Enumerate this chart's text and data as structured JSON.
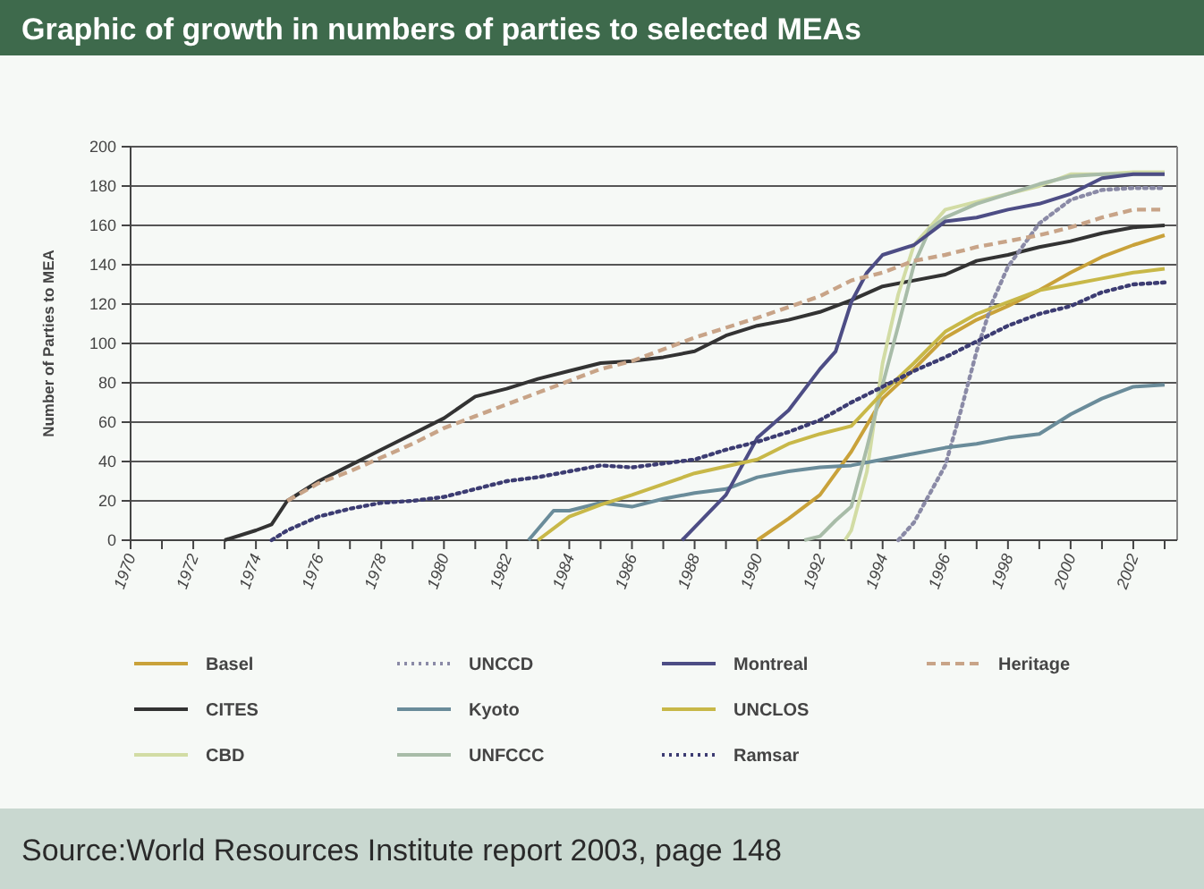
{
  "chart_data": {
    "type": "line",
    "title": "Graphic of growth in numbers of parties to selected MEAs",
    "ylabel": "Number of Parties to MEA",
    "annotations": [
      "Source:World Resources Institute report 2003, page 148"
    ],
    "xlim": [
      1970,
      2003.4
    ],
    "xticks": [
      1970,
      {
        "value": 1971,
        "label": null
      },
      1972,
      {
        "value": 1973,
        "label": null
      },
      1974,
      {
        "value": 1975,
        "label": null
      },
      1976,
      {
        "value": 1977,
        "label": null
      },
      1978,
      {
        "value": 1979,
        "label": null
      },
      1980,
      {
        "value": 1981,
        "label": null
      },
      1982,
      {
        "value": 1983,
        "label": null
      },
      1984,
      {
        "value": 1985,
        "label": null
      },
      1986,
      {
        "value": 1987,
        "label": null
      },
      1988,
      {
        "value": 1989,
        "label": null
      },
      1990,
      {
        "value": 1991,
        "label": null
      },
      1992,
      {
        "value": 1993,
        "label": null
      },
      1994,
      {
        "value": 1995,
        "label": null
      },
      1996,
      {
        "value": 1997,
        "label": null
      },
      1998,
      {
        "value": 1999,
        "label": null
      },
      2000,
      {
        "value": 2001,
        "label": null
      },
      2002,
      {
        "value": 2003,
        "label": null
      }
    ],
    "ylim": [
      0,
      200
    ],
    "yticks": [
      0,
      20,
      40,
      60,
      80,
      100,
      120,
      140,
      160,
      180,
      200
    ],
    "grid": "y",
    "legend": "bottom",
    "marker": "none",
    "series": [
      {
        "name": "Basel",
        "color": "#c9a23a",
        "line_style": "solid",
        "x": [
          1990,
          1991,
          1992,
          1993,
          1994,
          1995,
          1996,
          1997,
          1998,
          1999,
          2000,
          2001,
          2002,
          2003
        ],
        "values": [
          0,
          11,
          23,
          45,
          72,
          87,
          103,
          112,
          119,
          127,
          136,
          144,
          150,
          155
        ]
      },
      {
        "name": "CITES",
        "color": "#333333",
        "line_style": "solid",
        "x": [
          1973,
          1974,
          1974.5,
          1975,
          1976,
          1977,
          1978,
          1979,
          1980,
          1981,
          1982,
          1983,
          1984,
          1985,
          1986,
          1987,
          1988,
          1989,
          1990,
          1991,
          1992,
          1993,
          1994,
          1995,
          1996,
          1997,
          1998,
          1999,
          2000,
          2001,
          2002,
          2003
        ],
        "values": [
          0,
          5,
          8,
          20,
          30,
          38,
          46,
          54,
          62,
          73,
          77,
          82,
          86,
          90,
          91,
          93,
          96,
          104,
          109,
          112,
          116,
          122,
          129,
          132,
          135,
          142,
          145,
          149,
          152,
          156,
          159,
          160
        ]
      },
      {
        "name": "CBD",
        "color": "#d2dca4",
        "line_style": "solid",
        "x": [
          1992.8,
          1993,
          1993.5,
          1994,
          1994.5,
          1995,
          1996,
          1997,
          1998,
          1999,
          2000,
          2001,
          2002,
          2003
        ],
        "values": [
          0,
          5,
          35,
          90,
          125,
          150,
          168,
          172,
          176,
          180,
          186,
          186,
          187,
          187
        ]
      },
      {
        "name": "UNCCD",
        "color": "#8a8aa6",
        "line_style": "dotted",
        "x": [
          1994.5,
          1995,
          1996,
          1996.5,
          1997,
          1997.5,
          1998,
          1999,
          2000,
          2001,
          2002,
          2003
        ],
        "values": [
          0,
          9,
          38,
          66,
          96,
          121,
          139,
          161,
          173,
          178,
          179,
          179
        ]
      },
      {
        "name": "Kyoto",
        "color": "#6a8c9a",
        "line_style": "solid",
        "x": [
          1982.7,
          1983.5,
          1984,
          1985,
          1986,
          1987,
          1988,
          1989,
          1990,
          1991,
          1992,
          1993,
          1994,
          1995,
          1996,
          1997,
          1998,
          1999,
          2000,
          2001,
          2002,
          2003
        ],
        "values": [
          0,
          15,
          15,
          19,
          17,
          21,
          24,
          26,
          32,
          35,
          37,
          38,
          41,
          44,
          47,
          49,
          52,
          54,
          64,
          72,
          78,
          79
        ]
      },
      {
        "name": "UNFCCC",
        "color": "#a8bca8",
        "line_style": "solid",
        "x": [
          1991.5,
          1992,
          1992.5,
          1993,
          1993.5,
          1994,
          1994.5,
          1995,
          1995.5,
          1996,
          1997,
          1998,
          1999,
          2000,
          2001,
          2002,
          2003
        ],
        "values": [
          0,
          2,
          10,
          17,
          47,
          79,
          109,
          140,
          158,
          164,
          171,
          176,
          181,
          185,
          186,
          186,
          186
        ]
      },
      {
        "name": "Montreal",
        "color": "#4d4d85",
        "line_style": "solid",
        "x": [
          1987.6,
          1989,
          1990,
          1991,
          1992,
          1992.5,
          1993,
          1993.5,
          1994,
          1995,
          1996,
          1997,
          1998,
          1999,
          2000,
          2001,
          2002,
          2003
        ],
        "values": [
          0,
          23,
          52,
          66,
          87,
          96,
          121,
          136,
          145,
          150,
          162,
          164,
          168,
          171,
          176,
          184,
          186,
          186
        ]
      },
      {
        "name": "UNCLOS",
        "color": "#c8b848",
        "line_style": "solid",
        "x": [
          1983,
          1984,
          1985,
          1986,
          1988,
          1990,
          1991,
          1992,
          1993,
          1994,
          1995,
          1996,
          1997,
          1998,
          1999,
          2000,
          2001,
          2002,
          2003
        ],
        "values": [
          0,
          12,
          18,
          23,
          34,
          41,
          49,
          54,
          58,
          75,
          90,
          106,
          115,
          121,
          127,
          130,
          133,
          136,
          138
        ]
      },
      {
        "name": "Ramsar",
        "color": "#3c3c72",
        "line_style": "dotted",
        "x": [
          1974.5,
          1975,
          1976,
          1977,
          1978,
          1979,
          1980,
          1981,
          1982,
          1983,
          1984,
          1985,
          1986,
          1988,
          1989,
          1990,
          1991,
          1992,
          1993,
          1994,
          1995,
          1996,
          1997,
          1998,
          1999,
          2000,
          2001,
          2002,
          2003
        ],
        "values": [
          0,
          5,
          12,
          16,
          19,
          20,
          22,
          26,
          30,
          32,
          35,
          38,
          37,
          41,
          46,
          50,
          55,
          61,
          70,
          78,
          86,
          93,
          101,
          109,
          115,
          119,
          126,
          130,
          131
        ]
      },
      {
        "name": "Heritage",
        "color": "#c8a488",
        "line_style": "dashed",
        "x": [
          1975,
          1976,
          1977,
          1978,
          1979,
          1980,
          1981,
          1982,
          1983,
          1984,
          1985,
          1986,
          1988,
          1990,
          1992,
          1993,
          1994,
          1995,
          1996,
          1997,
          1998,
          1999,
          2000,
          2001,
          2002,
          2003
        ],
        "values": [
          20,
          29,
          35,
          42,
          49,
          57,
          63,
          69,
          75,
          81,
          87,
          91,
          103,
          113,
          124,
          132,
          136,
          142,
          145,
          149,
          152,
          155,
          159,
          164,
          168,
          168
        ]
      }
    ]
  }
}
